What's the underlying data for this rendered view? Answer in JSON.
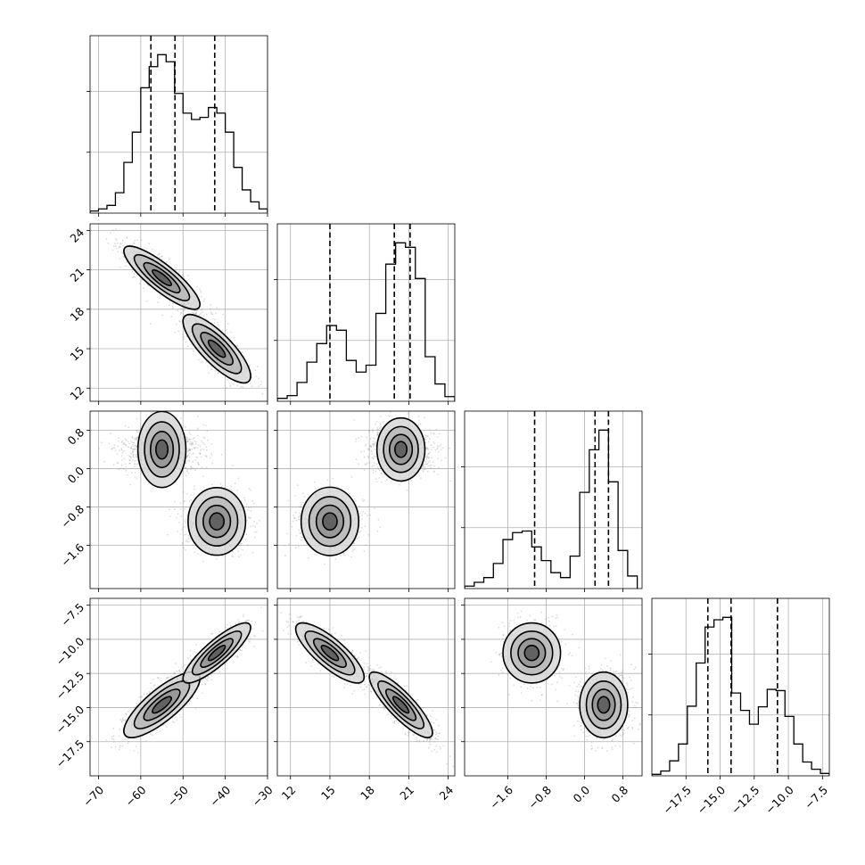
{
  "chart_data": {
    "type": "corner",
    "title": "",
    "grid": true,
    "parameters": [
      {
        "range": [
          -72,
          -30
        ],
        "ticks": [
          -70,
          -60,
          -50,
          -40,
          -30
        ],
        "tick_labels": [
          "−70",
          "−60",
          "−50",
          "−40",
          "−30"
        ],
        "modes": [
          {
            "mean": -55,
            "sd": 4.5,
            "weight": 0.62
          },
          {
            "mean": -42,
            "sd": 4,
            "weight": 0.38
          }
        ],
        "quantiles": [
          -57.6,
          -51.9,
          -42.5
        ]
      },
      {
        "range": [
          11,
          24.5
        ],
        "ticks": [
          12,
          15,
          18,
          21,
          24
        ],
        "tick_labels": [
          "12",
          "15",
          "18",
          "21",
          "24"
        ],
        "modes": [
          {
            "mean": 20.4,
            "sd": 1.2,
            "weight": 0.62
          },
          {
            "mean": 15,
            "sd": 1.3,
            "weight": 0.38
          }
        ],
        "quantiles": [
          15.0,
          19.9,
          21.1
        ]
      },
      {
        "range": [
          -2.5,
          1.2
        ],
        "ticks": [
          -1.6,
          -0.8,
          0.0,
          0.8
        ],
        "tick_labels": [
          "−1.6",
          "−0.8",
          "0.0",
          "0.8"
        ],
        "modes": [
          {
            "mean": 0.4,
            "sd": 0.25,
            "weight": 0.62
          },
          {
            "mean": -1.1,
            "sd": 0.3,
            "weight": 0.38
          }
        ],
        "quantiles": [
          -1.04,
          0.22,
          0.5
        ]
      },
      {
        "range": [
          -20,
          -7
        ],
        "ticks": [
          -17.5,
          -15.0,
          -12.5,
          -10.0,
          -7.5
        ],
        "tick_labels": [
          "−17.5",
          "−15.0",
          "−12.5",
          "−10.0",
          "−7.5"
        ],
        "modes": [
          {
            "mean": -14.8,
            "sd": 1.2,
            "weight": 0.62
          },
          {
            "mean": -11,
            "sd": 1.1,
            "weight": 0.38
          }
        ],
        "quantiles": [
          -15.9,
          -14.2,
          -10.8
        ]
      }
    ],
    "histograms": [
      {
        "param": 0,
        "bin_edges": [
          -72,
          -70,
          -68,
          -66,
          -64,
          -62,
          -60,
          -58,
          -56,
          -54,
          -52,
          -50,
          -48,
          -46,
          -44,
          -42,
          -40,
          -38,
          -36,
          -34,
          -32,
          -30
        ],
        "counts": [
          30,
          60,
          110,
          290,
          720,
          1150,
          1780,
          2080,
          2250,
          2150,
          1700,
          1420,
          1330,
          1360,
          1500,
          1420,
          1150,
          650,
          330,
          160,
          60
        ]
      },
      {
        "param": 1,
        "bin_edges": [
          11,
          11.75,
          12.5,
          13.25,
          14,
          14.75,
          15.5,
          16.25,
          17,
          17.75,
          18.5,
          19.25,
          20,
          20.75,
          21.5,
          22.25,
          23,
          23.75,
          24.5
        ],
        "counts": [
          120,
          230,
          760,
          1580,
          2330,
          3060,
          2870,
          1650,
          1180,
          1460,
          3550,
          5540,
          6400,
          6220,
          4960,
          1800,
          700,
          190
        ]
      },
      {
        "param": 2,
        "bin_edges": [
          -2.5,
          -2.3,
          -2.1,
          -1.9,
          -1.7,
          -1.5,
          -1.3,
          -1.1,
          -0.9,
          -0.7,
          -0.5,
          -0.3,
          -0.1,
          0.1,
          0.3,
          0.5,
          0.7,
          0.9,
          1.1
        ],
        "counts": [
          110,
          280,
          490,
          1120,
          2190,
          2500,
          2570,
          1860,
          1250,
          710,
          490,
          1450,
          4300,
          6200,
          7080,
          4770,
          1700,
          560
        ]
      },
      {
        "param": 3,
        "bin_edges": [
          -20,
          -19.35,
          -18.7,
          -18.05,
          -17.4,
          -16.75,
          -16.1,
          -15.45,
          -14.8,
          -14.15,
          -13.5,
          -12.85,
          -12.2,
          -11.55,
          -10.9,
          -10.25,
          -9.6,
          -8.95,
          -8.3,
          -7.65,
          -7
        ],
        "counts": [
          25,
          80,
          250,
          530,
          1160,
          1880,
          2480,
          2600,
          2640,
          1380,
          1090,
          860,
          1150,
          1440,
          1420,
          990,
          530,
          230,
          110,
          40
        ]
      }
    ],
    "pairs": [
      {
        "x_param": 0,
        "y_param": 1,
        "correlations": [
          -0.85,
          -0.8
        ]
      },
      {
        "x_param": 0,
        "y_param": 2,
        "correlations": [
          0,
          0
        ]
      },
      {
        "x_param": 1,
        "y_param": 2,
        "correlations": [
          0,
          0
        ]
      },
      {
        "x_param": 0,
        "y_param": 3,
        "correlations": [
          0.8,
          0.85
        ]
      },
      {
        "x_param": 1,
        "y_param": 3,
        "correlations": [
          -0.85,
          -0.8
        ]
      },
      {
        "x_param": 2,
        "y_param": 3,
        "correlations": [
          0,
          0
        ]
      }
    ]
  }
}
